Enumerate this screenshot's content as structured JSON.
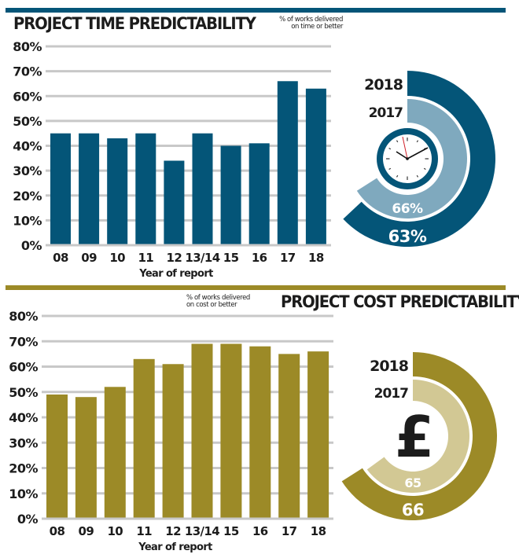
{
  "colors": {
    "time_dark": "#045578",
    "time_light": "#7fa9be",
    "cost_dark": "#9c8a27",
    "cost_light": "#d2c894",
    "grid": "#c8c8c8",
    "text": "#1c1c1c"
  },
  "time_section": {
    "title": "PROJECT TIME PREDICTABILITY",
    "subtitle": "% of works delivered\non time or better",
    "radial": {
      "outer_label": "2018",
      "inner_label": "2017",
      "outer_value_label": "63%",
      "inner_value_label": "66%",
      "icon": "clock-icon"
    }
  },
  "cost_section": {
    "title": "PROJECT COST PREDICTABILITY",
    "subtitle": "% of works delivered\non cost or better",
    "radial": {
      "outer_label": "2018",
      "inner_label": "2017",
      "outer_value_label": "66",
      "inner_value_label": "65",
      "icon": "pound-sign-icon"
    }
  },
  "chart_data": [
    {
      "type": "bar",
      "title": "PROJECT TIME PREDICTABILITY",
      "subtitle": "% of works delivered on time or better",
      "xlabel": "Year of report",
      "ylabel": "",
      "categories": [
        "08",
        "09",
        "10",
        "11",
        "12",
        "13/14",
        "15",
        "16",
        "17",
        "18"
      ],
      "values": [
        45,
        45,
        43,
        45,
        34,
        45,
        40,
        41,
        66,
        63
      ],
      "yticks": [
        "0%",
        "10%",
        "20%",
        "30%",
        "40%",
        "50%",
        "60%",
        "70%",
        "80%"
      ],
      "ylim": [
        0,
        80
      ],
      "grid": true,
      "legend": null,
      "radial_comparison": {
        "type": "radial-bar",
        "series": [
          {
            "name": "2018",
            "value": 63
          },
          {
            "name": "2017",
            "value": 66
          }
        ]
      }
    },
    {
      "type": "bar",
      "title": "PROJECT COST PREDICTABILITY",
      "subtitle": "% of works delivered on cost or better",
      "xlabel": "Year of report",
      "ylabel": "",
      "categories": [
        "08",
        "09",
        "10",
        "11",
        "12",
        "13/14",
        "15",
        "16",
        "17",
        "18"
      ],
      "values": [
        49,
        48,
        52,
        63,
        61,
        69,
        69,
        68,
        65,
        66
      ],
      "yticks": [
        "0%",
        "10%",
        "20%",
        "30%",
        "40%",
        "50%",
        "60%",
        "70%",
        "80%"
      ],
      "ylim": [
        0,
        80
      ],
      "grid": true,
      "legend": null,
      "radial_comparison": {
        "type": "radial-bar",
        "series": [
          {
            "name": "2018",
            "value": 66
          },
          {
            "name": "2017",
            "value": 65
          }
        ]
      }
    }
  ]
}
